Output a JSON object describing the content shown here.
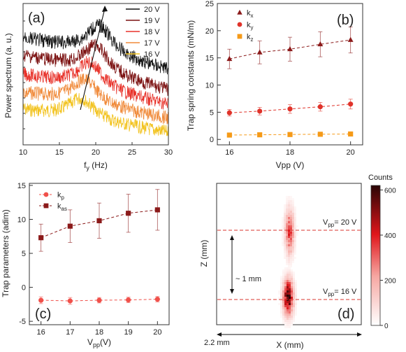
{
  "chart_data": [
    {
      "panel": "(a)",
      "type": "line",
      "xlabel": "f",
      "xlabel_sub": "y",
      "xlabel_unit": " (Hz)",
      "ylabel": "Power spectrum (a. u.)",
      "xlim": [
        10,
        30
      ],
      "xticks": [
        10,
        15,
        20,
        25,
        30
      ],
      "legend_position": "top-right",
      "series": [
        {
          "name": "20 V",
          "color": "#111111",
          "peak_hz": 20.5
        },
        {
          "name": "19 V",
          "color": "#7b1010",
          "peak_hz": 20.0
        },
        {
          "name": "18 V",
          "color": "#e8322a",
          "peak_hz": 19.2
        },
        {
          "name": "17 V",
          "color": "#f08a3a",
          "peak_hz": 18.5
        },
        {
          "name": "16 V",
          "color": "#f2c21c",
          "peak_hz": 18.0
        }
      ]
    },
    {
      "panel": "(b)",
      "type": "line",
      "xlabel": "Vpp (V)",
      "ylabel": "Trap spring constants (mN/m)",
      "xlim": [
        15.6,
        20.4
      ],
      "ylim": [
        -1,
        25
      ],
      "xticks": [
        16,
        18,
        20
      ],
      "yticks": [
        0,
        5,
        10,
        15,
        20,
        25
      ],
      "legend_position": "top-left",
      "series": [
        {
          "name": "k",
          "sub": "x",
          "color": "#8b1a1a",
          "marker": "triangle",
          "x": [
            16,
            17,
            18,
            19,
            20
          ],
          "y": [
            14.8,
            16.0,
            16.6,
            17.5,
            18.3
          ],
          "err": [
            1.8,
            2.1,
            2.2,
            2.3,
            2.4
          ]
        },
        {
          "name": "k",
          "sub": "y",
          "color": "#e0332a",
          "marker": "circle",
          "x": [
            16,
            17,
            18,
            19,
            20
          ],
          "y": [
            4.9,
            5.2,
            5.6,
            6.0,
            6.5
          ],
          "err": [
            0.6,
            0.7,
            0.8,
            0.8,
            0.9
          ]
        },
        {
          "name": "k",
          "sub": "z",
          "color": "#f59a18",
          "marker": "square",
          "x": [
            16,
            17,
            18,
            19,
            20
          ],
          "y": [
            0.8,
            0.85,
            0.9,
            0.95,
            1.0
          ],
          "err": [
            0.1,
            0.1,
            0.1,
            0.1,
            0.1
          ]
        }
      ]
    },
    {
      "panel": "(c)",
      "type": "line",
      "xlabel": "V",
      "xlabel_sub": "pp",
      "xlabel_unit": "(V)",
      "ylabel": "Trap parameters (adim)",
      "xlim": [
        15.6,
        20.4
      ],
      "ylim": [
        -5.5,
        15.3
      ],
      "xticks": [
        16,
        17,
        18,
        19,
        20
      ],
      "yticks": [
        -5,
        0,
        5,
        10,
        15
      ],
      "legend_position": "top-left",
      "series": [
        {
          "name": "k",
          "sub": "p",
          "color": "#f0504a",
          "marker": "circle",
          "x": [
            16,
            17,
            18,
            19,
            20
          ],
          "y": [
            -1.9,
            -2.0,
            -1.9,
            -1.85,
            -1.75
          ],
          "err": [
            0.5,
            0.5,
            0.4,
            0.4,
            0.4
          ]
        },
        {
          "name": "k",
          "sub": "as",
          "color": "#8b1a1a",
          "marker": "square",
          "x": [
            16,
            17,
            18,
            19,
            20
          ],
          "y": [
            7.3,
            9.0,
            9.8,
            10.9,
            11.4
          ],
          "err": [
            2.0,
            2.4,
            2.6,
            2.8,
            3.0
          ]
        }
      ]
    },
    {
      "panel": "(d)",
      "type": "heatmap",
      "xlabel": "X (mm)",
      "ylabel": "Z (mm)",
      "colorbar_label": "Counts",
      "colorbar_ticks": [
        0,
        200,
        400,
        600
      ],
      "colorbar_max": 620,
      "scale_x_label": "2.2 mm",
      "scale_z_label": "~ 1 mm",
      "lines": [
        {
          "label_main": "V",
          "label_sub": "pp",
          "label_tail": "= 20 V"
        },
        {
          "label_main": "V",
          "label_sub": "pp",
          "label_tail": "= 16 V"
        }
      ]
    }
  ]
}
